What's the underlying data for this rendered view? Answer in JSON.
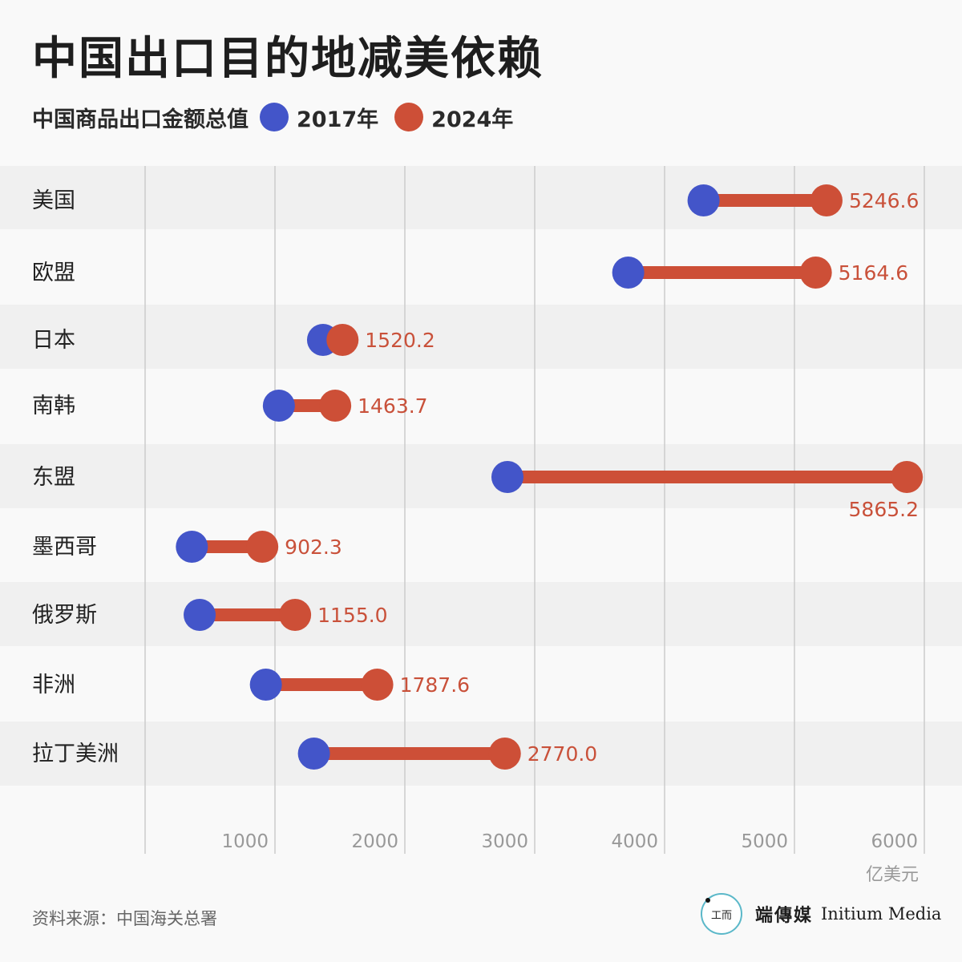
{
  "header": {
    "title": "中国出口目的地减美依赖",
    "legend_label": "中国商品出口金额总值",
    "series_2017": "2017年",
    "series_2024": "2024年"
  },
  "colors": {
    "series_2017": "#4355c9",
    "series_2024": "#cd4f37",
    "label_2024": "#c9513a",
    "band": "#f0f0f0",
    "grid": "#cccccc"
  },
  "footer": {
    "source": "资料来源：中国海关总署",
    "logo_cn": "端傳媒",
    "logo_en": "Initium Media",
    "logo_mark": "工而"
  },
  "chart_data": {
    "type": "dumbbell",
    "xlim": [
      0,
      6000
    ],
    "x_ticks": [
      "1000",
      "2000",
      "3000",
      "4000",
      "5000",
      "6000"
    ],
    "x_unit": "亿美元",
    "grid": true,
    "series": [
      {
        "name": "2017年",
        "values": [
          4300,
          3720,
          1370,
          1030,
          2790,
          360,
          420,
          930,
          1300
        ]
      },
      {
        "name": "2024年",
        "values": [
          5246.6,
          5164.6,
          1520.2,
          1463.7,
          5865.2,
          902.3,
          1155.0,
          1787.6,
          2770.0
        ]
      }
    ],
    "categories": [
      "美国",
      "欧盟",
      "日本",
      "南韩",
      "东盟",
      "墨西哥",
      "俄罗斯",
      "非洲",
      "拉丁美洲"
    ],
    "labels_2024": [
      "5246.6",
      "5164.6",
      "1520.2",
      "1463.7",
      "5865.2",
      "902.3",
      "1155.0",
      "1787.6",
      "2770.0"
    ]
  }
}
